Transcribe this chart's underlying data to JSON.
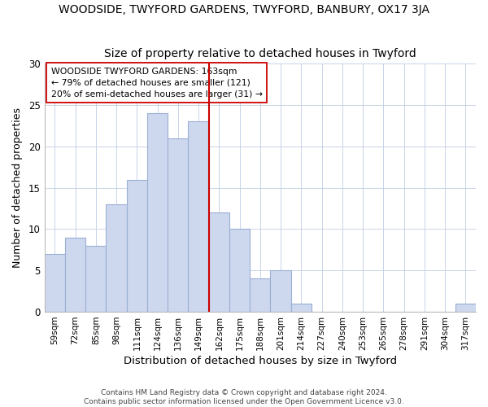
{
  "title": "WOODSIDE, TWYFORD GARDENS, TWYFORD, BANBURY, OX17 3JA",
  "subtitle": "Size of property relative to detached houses in Twyford",
  "xlabel": "Distribution of detached houses by size in Twyford",
  "ylabel": "Number of detached properties",
  "bar_labels": [
    "59sqm",
    "72sqm",
    "85sqm",
    "98sqm",
    "111sqm",
    "124sqm",
    "136sqm",
    "149sqm",
    "162sqm",
    "175sqm",
    "188sqm",
    "201sqm",
    "214sqm",
    "227sqm",
    "240sqm",
    "253sqm",
    "265sqm",
    "278sqm",
    "291sqm",
    "304sqm",
    "317sqm"
  ],
  "bar_values": [
    7,
    9,
    8,
    13,
    16,
    24,
    21,
    23,
    12,
    10,
    4,
    5,
    1,
    0,
    0,
    0,
    0,
    0,
    0,
    0,
    1
  ],
  "bar_color": "#cdd8ee",
  "bar_edge_color": "#9bafd4",
  "vline_index": 8,
  "vline_color": "#cc0000",
  "annotation_title": "WOODSIDE TWYFORD GARDENS: 163sqm",
  "annotation_line1": "← 79% of detached houses are smaller (121)",
  "annotation_line2": "20% of semi-detached houses are larger (31) →",
  "ylim": [
    0,
    30
  ],
  "yticks": [
    0,
    5,
    10,
    15,
    20,
    25,
    30
  ],
  "footnote1": "Contains HM Land Registry data © Crown copyright and database right 2024.",
  "footnote2": "Contains public sector information licensed under the Open Government Licence v3.0."
}
